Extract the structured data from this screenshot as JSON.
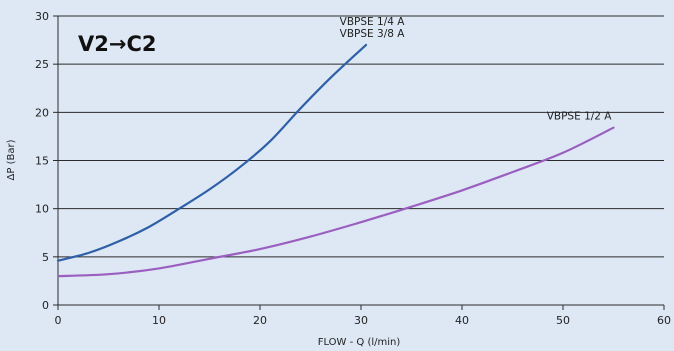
{
  "chart_data": {
    "type": "line",
    "title": "V2→C2",
    "xlabel": "FLOW - Q (l/min)",
    "ylabel": "ΔP (Bar)",
    "xlim": [
      0,
      60
    ],
    "ylim": [
      0,
      30
    ],
    "x_ticks": [
      "0",
      "10",
      "20",
      "30",
      "40",
      "50",
      "60"
    ],
    "y_ticks": [
      "0",
      "5",
      "10",
      "15",
      "20",
      "25",
      "30"
    ],
    "grid": "horizontal",
    "series": [
      {
        "name": "VBPSE 1/4 A\nVBPSE 3/8 A",
        "label_lines": [
          "VBPSE 1/4 A",
          "VBPSE 3/8 A"
        ],
        "color": "#2e5fa8",
        "x": [
          0,
          3,
          6,
          9,
          12,
          15,
          18,
          21,
          24,
          27,
          30.5
        ],
        "y": [
          4.6,
          5.4,
          6.6,
          8.1,
          10.0,
          12.0,
          14.3,
          17.0,
          20.4,
          23.6,
          27.0
        ]
      },
      {
        "name": "VBPSE 1/2 A",
        "label_lines": [
          "VBPSE 1/2 A"
        ],
        "color": "#9b5fc0",
        "x": [
          0,
          5,
          10,
          15,
          20,
          25,
          30,
          35,
          40,
          45,
          50,
          55
        ],
        "y": [
          3.0,
          3.2,
          3.8,
          4.8,
          5.8,
          7.1,
          8.6,
          10.2,
          11.9,
          13.8,
          15.8,
          18.4
        ]
      }
    ]
  }
}
